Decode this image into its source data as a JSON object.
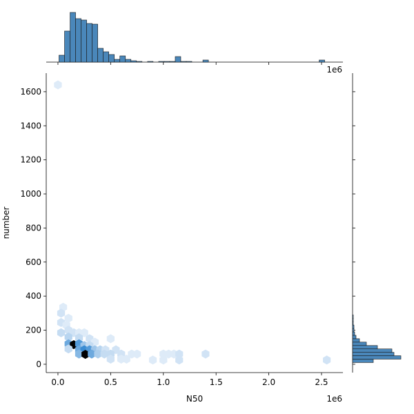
{
  "chart_data": {
    "type": "hexbin",
    "x_label": "N50",
    "y_label": "number",
    "x_offset_label": "1e6",
    "xlim": [
      -0.111,
      2.703
    ],
    "ylim": [
      -49,
      1709
    ],
    "xticks": [
      {
        "value": 0,
        "label": "0.0"
      },
      0.5,
      {
        "value": 1,
        "label": "1.0"
      },
      1.5,
      {
        "value": 2,
        "label": "2.0"
      },
      2.5
    ],
    "yticks": [
      0,
      200,
      400,
      600,
      800,
      1000,
      1200,
      1400,
      1600
    ],
    "colormap": [
      "#eaf2fb",
      "#2f85d0",
      "#000000"
    ],
    "hexes": {
      "x": [
        0,
        0.05,
        0.03,
        0.1,
        0.03,
        0.08,
        0.1,
        0.03,
        0.15,
        0.2,
        0.25,
        0.1,
        0.2,
        0.3,
        0.35,
        0.1,
        0.15,
        0.2,
        0.25,
        0.3,
        0.5,
        0.1,
        0.2,
        0.25,
        0.3,
        0.35,
        0.4,
        0.45,
        0.55,
        0.2,
        0.26,
        0.32,
        0.38,
        0.44,
        0.5,
        0.6,
        0.7,
        0.5,
        0.6,
        0.65,
        1.0,
        1.05,
        1.1,
        1.15,
        1.4,
        0.9,
        1.0,
        1.15,
        2.55,
        0.75
      ],
      "y": [
        1640,
        335,
        300,
        270,
        245,
        230,
        200,
        185,
        185,
        185,
        185,
        160,
        155,
        150,
        130,
        120,
        115,
        120,
        110,
        110,
        150,
        90,
        85,
        85,
        85,
        85,
        85,
        85,
        85,
        60,
        58,
        60,
        60,
        60,
        60,
        60,
        60,
        30,
        30,
        30,
        60,
        60,
        60,
        60,
        60,
        25,
        25,
        25,
        25,
        60
      ],
      "counts": [
        1,
        1,
        2,
        1,
        2,
        1,
        2,
        3,
        2,
        1,
        1,
        4,
        3,
        2,
        1,
        10,
        30,
        12,
        6,
        3,
        1,
        3,
        10,
        14,
        12,
        6,
        4,
        2,
        2,
        8,
        30,
        10,
        5,
        3,
        3,
        2,
        1,
        2,
        1,
        1,
        1,
        1,
        1,
        2,
        2,
        1,
        1,
        2,
        2,
        1
      ]
    },
    "marginal_color": "#4a87ba",
    "x_hist": {
      "bins": [
        0.01,
        0.0625,
        0.115,
        0.1675,
        0.22,
        0.2725,
        0.325,
        0.3775,
        0.43,
        0.4825,
        0.535,
        0.5875,
        0.64,
        0.6925,
        0.745,
        0.7975,
        0.85,
        0.9025,
        0.955,
        1.0075,
        1.06,
        1.1125,
        1.165,
        1.2175,
        1.27,
        1.3225,
        1.375,
        1.4275,
        1.48,
        1.5325,
        1.585,
        1.6375,
        1.69,
        1.7425,
        1.795,
        1.8475,
        1.9,
        1.9525,
        2.005,
        2.0575,
        2.11,
        2.1625,
        2.215,
        2.2675,
        2.32,
        2.3725,
        2.425,
        2.4775,
        2.53,
        2.5825
      ],
      "counts": [
        10,
        45,
        72,
        63,
        61,
        56,
        55,
        20,
        15,
        11,
        4,
        9,
        4,
        2,
        1,
        0,
        1,
        0,
        1,
        1,
        1,
        8,
        1,
        1,
        0,
        0,
        3,
        0,
        0,
        0,
        0,
        0,
        0,
        0,
        0,
        0,
        0,
        0,
        0,
        0,
        0,
        0,
        0,
        0,
        0,
        0,
        0,
        3,
        0
      ]
    },
    "y_hist": {
      "bins": [
        10,
        30,
        50,
        70,
        90,
        110,
        130,
        150,
        170,
        190,
        210,
        230,
        250,
        270,
        290
      ],
      "counts": [
        30,
        70,
        60,
        57,
        36,
        20,
        10,
        5,
        3,
        2,
        2,
        1,
        1,
        1
      ]
    }
  }
}
